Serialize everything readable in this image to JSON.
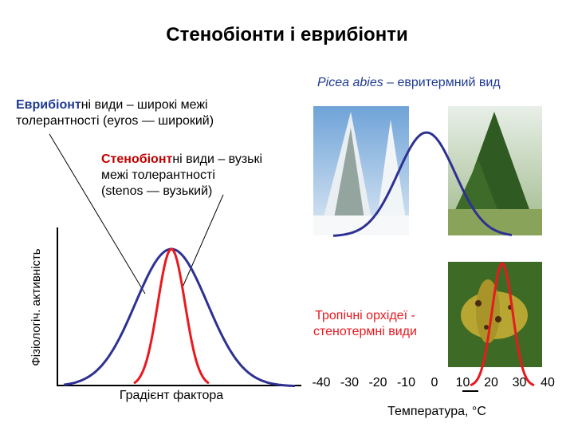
{
  "title": "Стенобіонти і еврибіонти",
  "picea": {
    "species": "Picea abies",
    "text": " – евритермний вид"
  },
  "eurybiont": {
    "bold": "Еврибіонт",
    "lines": [
      "ні види – широкі межі",
      "толерантності (eyros — широкий)"
    ]
  },
  "stenobiont": {
    "bold": "Стенобіонт",
    "lines": [
      "ні види – вузькі",
      "межі толерантності",
      "(stenos — вузький)"
    ]
  },
  "y_axis_label": "Фізіологіч. активність",
  "x_axis_label": "Градієнт фактора",
  "orchid": {
    "lines": [
      "Тропічні орхідеї -",
      "стенотермні види"
    ]
  },
  "temperature": {
    "ticks": [
      -40,
      -30,
      -20,
      -10,
      0,
      10,
      20,
      30,
      40
    ],
    "label": "Температура, °С"
  }
}
